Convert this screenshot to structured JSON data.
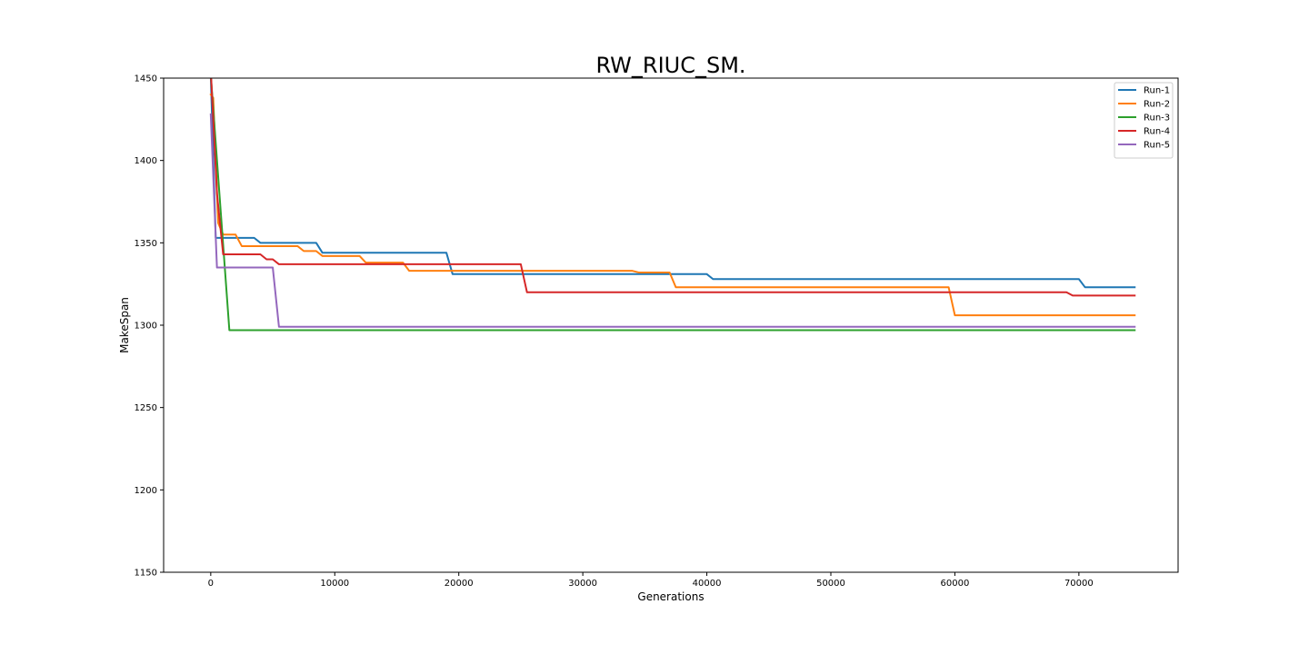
{
  "chart_data": {
    "type": "line",
    "title": "RW_RIUC_SM.",
    "xlabel": "Generations",
    "ylabel": "MakeSpan",
    "xlim": [
      -3800,
      78000
    ],
    "ylim": [
      1150,
      1450
    ],
    "xticks": [
      0,
      10000,
      20000,
      30000,
      40000,
      50000,
      60000,
      70000
    ],
    "yticks": [
      1150,
      1200,
      1250,
      1300,
      1350,
      1400,
      1450
    ],
    "grid": false,
    "legend_position": "top-right",
    "series": [
      {
        "name": "Run-1",
        "color": "#1f77b4",
        "points": [
          [
            0,
            1452
          ],
          [
            400,
            1353
          ],
          [
            3500,
            1353
          ],
          [
            4000,
            1350
          ],
          [
            8500,
            1350
          ],
          [
            9000,
            1344
          ],
          [
            19000,
            1344
          ],
          [
            19500,
            1331
          ],
          [
            40000,
            1331
          ],
          [
            40500,
            1328
          ],
          [
            70000,
            1328
          ],
          [
            70500,
            1323
          ],
          [
            74500,
            1323
          ]
        ]
      },
      {
        "name": "Run-2",
        "color": "#ff7f0e",
        "points": [
          [
            0,
            1440
          ],
          [
            200,
            1438
          ],
          [
            600,
            1362
          ],
          [
            1000,
            1355
          ],
          [
            2000,
            1355
          ],
          [
            2500,
            1348
          ],
          [
            7000,
            1348
          ],
          [
            7500,
            1345
          ],
          [
            8500,
            1345
          ],
          [
            9000,
            1342
          ],
          [
            12000,
            1342
          ],
          [
            12500,
            1338
          ],
          [
            15500,
            1338
          ],
          [
            16000,
            1333
          ],
          [
            34000,
            1333
          ],
          [
            34500,
            1332
          ],
          [
            37000,
            1332
          ],
          [
            37500,
            1323
          ],
          [
            59500,
            1323
          ],
          [
            60000,
            1306
          ],
          [
            74500,
            1306
          ]
        ]
      },
      {
        "name": "Run-3",
        "color": "#2ca02c",
        "points": [
          [
            0,
            1452
          ],
          [
            1500,
            1297
          ],
          [
            74500,
            1297
          ]
        ]
      },
      {
        "name": "Run-4",
        "color": "#d62728",
        "points": [
          [
            0,
            1455
          ],
          [
            500,
            1380
          ],
          [
            1000,
            1343
          ],
          [
            4000,
            1343
          ],
          [
            4500,
            1340
          ],
          [
            5000,
            1340
          ],
          [
            5500,
            1337
          ],
          [
            25000,
            1337
          ],
          [
            25500,
            1320
          ],
          [
            69000,
            1320
          ],
          [
            69500,
            1318
          ],
          [
            74500,
            1318
          ]
        ]
      },
      {
        "name": "Run-5",
        "color": "#9467bd",
        "points": [
          [
            0,
            1428
          ],
          [
            500,
            1335
          ],
          [
            5000,
            1335
          ],
          [
            5500,
            1299
          ],
          [
            74500,
            1299
          ]
        ]
      }
    ]
  }
}
